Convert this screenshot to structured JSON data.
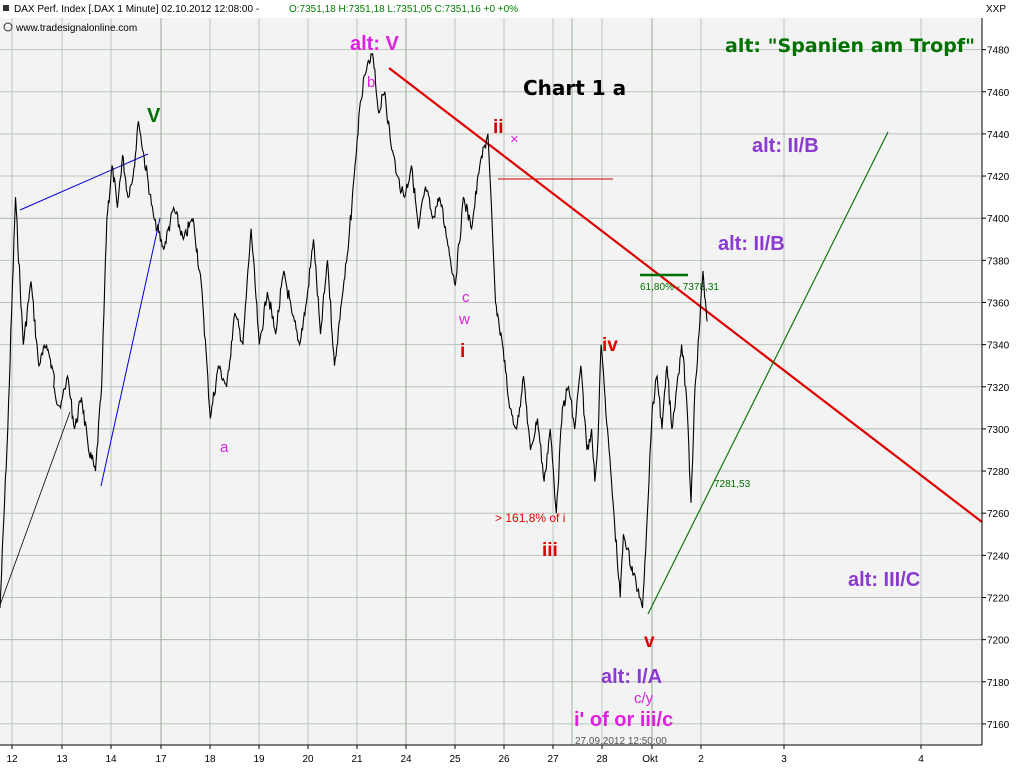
{
  "header": {
    "instrument": "DAX Perf. Index [.DAX 1 Minute] 02.10.2012 12:08:00 - ",
    "ohlc": "O:7351,18 H:7351,18 L:7351,05 C:7351,16 +0 +0%",
    "source": "www.tradesignalonline.com",
    "axis_code": "XXP"
  },
  "colors": {
    "price": "#000000",
    "grid": "#b9c6b9",
    "plot_bg": "#f3f3f3",
    "red": "#e00000",
    "green": "#007000",
    "blue": "#0000cc",
    "magenta": "#e020e0",
    "purple": "#8a3ad0",
    "darkred": "#cc0000"
  },
  "chart_data": {
    "type": "line",
    "title": "Chart 1 a",
    "subtitle": "alt: \"Spanien am Tropf\"",
    "ylim": [
      7150,
      7495
    ],
    "grid": true,
    "y_ticks": [
      7160,
      7180,
      7200,
      7220,
      7240,
      7260,
      7280,
      7300,
      7320,
      7340,
      7360,
      7380,
      7400,
      7420,
      7440,
      7460,
      7480
    ],
    "x_ticks": [
      "12",
      "13",
      "14",
      "17",
      "18",
      "19",
      "20",
      "21",
      "24",
      "25",
      "26",
      "27",
      "28",
      "Okt",
      "2",
      "3",
      "4"
    ],
    "x_tick_dates": [
      "12.09",
      "13.09",
      "14.09",
      "17.09",
      "18.09",
      "19.09",
      "20.09",
      "21.09",
      "24.09",
      "25.09",
      "26.09",
      "27.09",
      "28.09",
      "01.10",
      "02.10",
      "03.10",
      "04.10"
    ],
    "cursor_label": "27.09.2012 12:50:00",
    "price_series": {
      "name": "DAX",
      "points": [
        [
          "12.09",
          7215
        ],
        [
          "12.09",
          7300
        ],
        [
          "12.09",
          7410
        ],
        [
          "12.09",
          7340
        ],
        [
          "12.09",
          7370
        ],
        [
          "12.09",
          7330
        ],
        [
          "12.09",
          7340
        ],
        [
          "12.09",
          7325
        ],
        [
          "13.09",
          7320
        ],
        [
          "13.09",
          7310
        ],
        [
          "13.09",
          7325
        ],
        [
          "13.09",
          7300
        ],
        [
          "13.09",
          7315
        ],
        [
          "13.09",
          7290
        ],
        [
          "13.09",
          7280
        ],
        [
          "14.09",
          7320
        ],
        [
          "14.09",
          7400
        ],
        [
          "14.09",
          7425
        ],
        [
          "14.09",
          7405
        ],
        [
          "14.09",
          7430
        ],
        [
          "14.09",
          7410
        ],
        [
          "14.09",
          7420
        ],
        [
          "14.09",
          7446
        ],
        [
          "17.09",
          7400
        ],
        [
          "17.09",
          7385
        ],
        [
          "17.09",
          7405
        ],
        [
          "17.09",
          7390
        ],
        [
          "17.09",
          7400
        ],
        [
          "18.09",
          7365
        ],
        [
          "18.09",
          7305
        ],
        [
          "18.09",
          7330
        ],
        [
          "18.09",
          7320
        ],
        [
          "18.09",
          7355
        ],
        [
          "18.09",
          7340
        ],
        [
          "19.09",
          7395
        ],
        [
          "19.09",
          7340
        ],
        [
          "19.09",
          7365
        ],
        [
          "19.09",
          7345
        ],
        [
          "19.09",
          7375
        ],
        [
          "19.09",
          7355
        ],
        [
          "20.09",
          7340
        ],
        [
          "20.09",
          7360
        ],
        [
          "20.09",
          7390
        ],
        [
          "20.09",
          7345
        ],
        [
          "20.09",
          7380
        ],
        [
          "20.09",
          7330
        ],
        [
          "20.09",
          7360
        ],
        [
          "21.09",
          7385
        ],
        [
          "21.09",
          7420
        ],
        [
          "21.09",
          7455
        ],
        [
          "21.09",
          7470
        ],
        [
          "21.09",
          7478
        ],
        [
          "21.09",
          7450
        ],
        [
          "21.09",
          7460
        ],
        [
          "21.09",
          7435
        ],
        [
          "24.09",
          7420
        ],
        [
          "24.09",
          7410
        ],
        [
          "24.09",
          7425
        ],
        [
          "24.09",
          7395
        ],
        [
          "24.09",
          7415
        ],
        [
          "24.09",
          7400
        ],
        [
          "24.09",
          7410
        ],
        [
          "25.09",
          7390
        ],
        [
          "25.09",
          7368
        ],
        [
          "25.09",
          7410
        ],
        [
          "25.09",
          7395
        ],
        [
          "25.09",
          7425
        ],
        [
          "25.09",
          7440
        ],
        [
          "26.09",
          7360
        ],
        [
          "26.09",
          7340
        ],
        [
          "26.09",
          7310
        ],
        [
          "26.09",
          7300
        ],
        [
          "26.09",
          7325
        ],
        [
          "26.09",
          7290
        ],
        [
          "26.09",
          7305
        ],
        [
          "27.09",
          7275
        ],
        [
          "27.09",
          7300
        ],
        [
          "27.09",
          7260
        ],
        [
          "27.09",
          7310
        ],
        [
          "27.09",
          7320
        ],
        [
          "27.09",
          7300
        ],
        [
          "27.09",
          7330
        ],
        [
          "27.09",
          7290
        ],
        [
          "28.09",
          7300
        ],
        [
          "28.09",
          7275
        ],
        [
          "28.09",
          7295
        ],
        [
          "28.09",
          7340
        ],
        [
          "28.09",
          7320
        ],
        [
          "28.09",
          7300
        ],
        [
          "28.09",
          7280
        ],
        [
          "28.09",
          7260
        ],
        [
          "28.09",
          7240
        ],
        [
          "28.09",
          7220
        ],
        [
          "28.09",
          7250
        ],
        [
          "01.10",
          7215
        ],
        [
          "01.10",
          7260
        ],
        [
          "01.10",
          7310
        ],
        [
          "01.10",
          7325
        ],
        [
          "01.10",
          7300
        ],
        [
          "01.10",
          7330
        ],
        [
          "01.10",
          7300
        ],
        [
          "01.10",
          7320
        ],
        [
          "01.10",
          7340
        ],
        [
          "01.10",
          7315
        ],
        [
          "02.10",
          7265
        ],
        [
          "02.10",
          7320
        ],
        [
          "02.10",
          7345
        ],
        [
          "02.10",
          7375
        ],
        [
          "02.10",
          7351
        ]
      ]
    },
    "levels": [
      {
        "label": "61,80% - 7378,31",
        "value": 7378.31
      },
      {
        "label": "7281,53",
        "value": 7281.53
      }
    ],
    "wave_labels": [
      {
        "text": "alt: V",
        "color": "magenta",
        "size": "lg"
      },
      {
        "text": "V",
        "color": "green",
        "size": "lg"
      },
      {
        "text": "b",
        "color": "magenta",
        "size": "sm"
      },
      {
        "text": "a",
        "color": "magenta",
        "size": "sm"
      },
      {
        "text": "ii",
        "color": "darkred",
        "size": "md"
      },
      {
        "text": "×",
        "color": "magenta",
        "size": "sm"
      },
      {
        "text": "c",
        "color": "magenta",
        "size": "sm"
      },
      {
        "text": "w",
        "color": "magenta",
        "size": "sm"
      },
      {
        "text": "i",
        "color": "red",
        "size": "md"
      },
      {
        "text": "iv",
        "color": "red",
        "size": "md"
      },
      {
        "text": "> 161,8% of i",
        "color": "red",
        "size": "xs"
      },
      {
        "text": "iii",
        "color": "red",
        "size": "md"
      },
      {
        "text": "v",
        "color": "red",
        "size": "md"
      },
      {
        "text": "alt: I/A",
        "color": "purple",
        "size": "lg"
      },
      {
        "text": "c/y",
        "color": "magenta",
        "size": "sm"
      },
      {
        "text": "i' of or iii/c",
        "color": "magenta",
        "size": "lg"
      },
      {
        "text": "alt: II/B",
        "color": "purple",
        "size": "lg"
      },
      {
        "text": "alt: II/B",
        "color": "purple",
        "size": "lg"
      },
      {
        "text": "alt: III/C",
        "color": "purple",
        "size": "lg"
      }
    ]
  }
}
